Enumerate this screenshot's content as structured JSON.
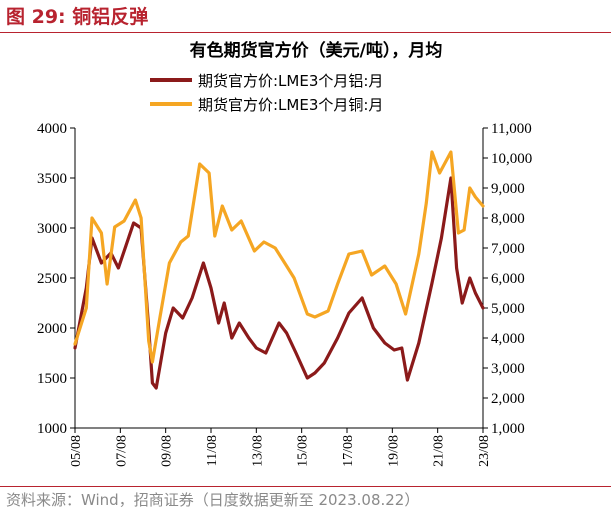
{
  "figure": {
    "label": "图 29:",
    "title": "铜铝反弹",
    "source": "资料来源：Wind，招商证券（日度数据更新至 2023.08.22）"
  },
  "chart_data": {
    "type": "line",
    "title": "有色期货官方价（美元/吨），月均",
    "legend_position": "top",
    "grid": false,
    "x_ticks": [
      "05/08",
      "07/08",
      "09/08",
      "11/08",
      "13/08",
      "15/08",
      "17/08",
      "19/08",
      "21/08",
      "23/08"
    ],
    "x_range": [
      "2005-08",
      "2023-08"
    ],
    "y_left": {
      "range": [
        1000,
        4000
      ],
      "ticks": [
        "1000",
        "1500",
        "2000",
        "2500",
        "3000",
        "3500",
        "4000"
      ]
    },
    "y_right": {
      "range": [
        1000,
        11000
      ],
      "ticks": [
        "1,000",
        "2,000",
        "3,000",
        "4,000",
        "5,000",
        "6,000",
        "7,000",
        "8,000",
        "9,000",
        "10,000",
        "11,000"
      ]
    },
    "series": [
      {
        "name": "期货官方价:LME3个月铝:月",
        "axis": "left",
        "color": "#8b1a1a",
        "points": [
          [
            "2005-08",
            1800
          ],
          [
            "2006-02",
            2400
          ],
          [
            "2006-05",
            2900
          ],
          [
            "2006-10",
            2650
          ],
          [
            "2007-03",
            2750
          ],
          [
            "2007-07",
            2600
          ],
          [
            "2008-03",
            3050
          ],
          [
            "2008-07",
            3000
          ],
          [
            "2008-11",
            2000
          ],
          [
            "2009-01",
            1450
          ],
          [
            "2009-03",
            1400
          ],
          [
            "2009-08",
            1950
          ],
          [
            "2009-12",
            2200
          ],
          [
            "2010-05",
            2100
          ],
          [
            "2010-10",
            2300
          ],
          [
            "2011-04",
            2650
          ],
          [
            "2011-08",
            2400
          ],
          [
            "2011-12",
            2050
          ],
          [
            "2012-03",
            2250
          ],
          [
            "2012-07",
            1900
          ],
          [
            "2012-11",
            2050
          ],
          [
            "2013-04",
            1900
          ],
          [
            "2013-08",
            1800
          ],
          [
            "2014-01",
            1750
          ],
          [
            "2014-08",
            2050
          ],
          [
            "2014-12",
            1950
          ],
          [
            "2015-05",
            1750
          ],
          [
            "2015-11",
            1500
          ],
          [
            "2016-03",
            1550
          ],
          [
            "2016-08",
            1650
          ],
          [
            "2017-03",
            1900
          ],
          [
            "2017-09",
            2150
          ],
          [
            "2018-04",
            2300
          ],
          [
            "2018-10",
            2000
          ],
          [
            "2019-04",
            1850
          ],
          [
            "2019-09",
            1780
          ],
          [
            "2020-01",
            1800
          ],
          [
            "2020-04",
            1480
          ],
          [
            "2020-10",
            1850
          ],
          [
            "2021-05",
            2450
          ],
          [
            "2021-10",
            2900
          ],
          [
            "2022-03",
            3500
          ],
          [
            "2022-06",
            2600
          ],
          [
            "2022-09",
            2250
          ],
          [
            "2023-01",
            2500
          ],
          [
            "2023-04",
            2350
          ],
          [
            "2023-08",
            2200
          ]
        ]
      },
      {
        "name": "期货官方价:LME3个月铜:月",
        "axis": "right",
        "color": "#f5a623",
        "points": [
          [
            "2005-08",
            3800
          ],
          [
            "2006-02",
            5000
          ],
          [
            "2006-05",
            8000
          ],
          [
            "2006-10",
            7500
          ],
          [
            "2007-01",
            5800
          ],
          [
            "2007-05",
            7700
          ],
          [
            "2007-10",
            7900
          ],
          [
            "2008-04",
            8600
          ],
          [
            "2008-07",
            8000
          ],
          [
            "2008-11",
            3900
          ],
          [
            "2009-01",
            3200
          ],
          [
            "2009-05",
            4700
          ],
          [
            "2009-10",
            6500
          ],
          [
            "2010-04",
            7200
          ],
          [
            "2010-08",
            7400
          ],
          [
            "2011-02",
            9800
          ],
          [
            "2011-07",
            9500
          ],
          [
            "2011-10",
            7400
          ],
          [
            "2012-02",
            8400
          ],
          [
            "2012-07",
            7600
          ],
          [
            "2012-12",
            7900
          ],
          [
            "2013-07",
            6900
          ],
          [
            "2013-12",
            7200
          ],
          [
            "2014-06",
            7000
          ],
          [
            "2014-12",
            6400
          ],
          [
            "2015-04",
            6000
          ],
          [
            "2015-11",
            4800
          ],
          [
            "2016-03",
            4700
          ],
          [
            "2016-10",
            4900
          ],
          [
            "2017-03",
            5800
          ],
          [
            "2017-09",
            6800
          ],
          [
            "2018-04",
            6900
          ],
          [
            "2018-09",
            6100
          ],
          [
            "2019-04",
            6400
          ],
          [
            "2019-10",
            5800
          ],
          [
            "2020-03",
            4800
          ],
          [
            "2020-10",
            6800
          ],
          [
            "2021-02",
            8500
          ],
          [
            "2021-05",
            10200
          ],
          [
            "2021-09",
            9500
          ],
          [
            "2022-03",
            10200
          ],
          [
            "2022-07",
            7500
          ],
          [
            "2022-10",
            7600
          ],
          [
            "2023-01",
            9000
          ],
          [
            "2023-04",
            8700
          ],
          [
            "2023-08",
            8400
          ]
        ]
      }
    ]
  }
}
